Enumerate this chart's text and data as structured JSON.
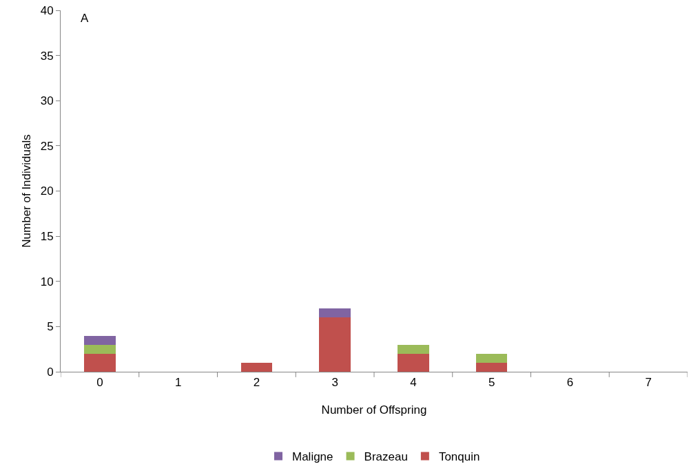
{
  "chart_data": {
    "type": "bar",
    "stacked": true,
    "xlabel": "Number of Offspring",
    "ylabel": "Number of Individuals",
    "annotations": [
      "A"
    ],
    "categories": [
      "0",
      "1",
      "2",
      "3",
      "4",
      "5",
      "6",
      "7"
    ],
    "series": [
      {
        "name": "Tonquin",
        "color": "#c0504d",
        "values": [
          2,
          0,
          1,
          6,
          2,
          1,
          0,
          0
        ]
      },
      {
        "name": "Brazeau",
        "color": "#9bbb59",
        "values": [
          1,
          0,
          0,
          0,
          1,
          1,
          0,
          0
        ]
      },
      {
        "name": "Maligne",
        "color": "#8064a2",
        "values": [
          1,
          0,
          0,
          1,
          0,
          0,
          0,
          0
        ]
      }
    ],
    "ylim": [
      0,
      40
    ],
    "yticks": [
      0,
      5,
      10,
      15,
      20,
      25,
      30,
      35,
      40
    ],
    "grid": false,
    "legend": "bottom"
  }
}
